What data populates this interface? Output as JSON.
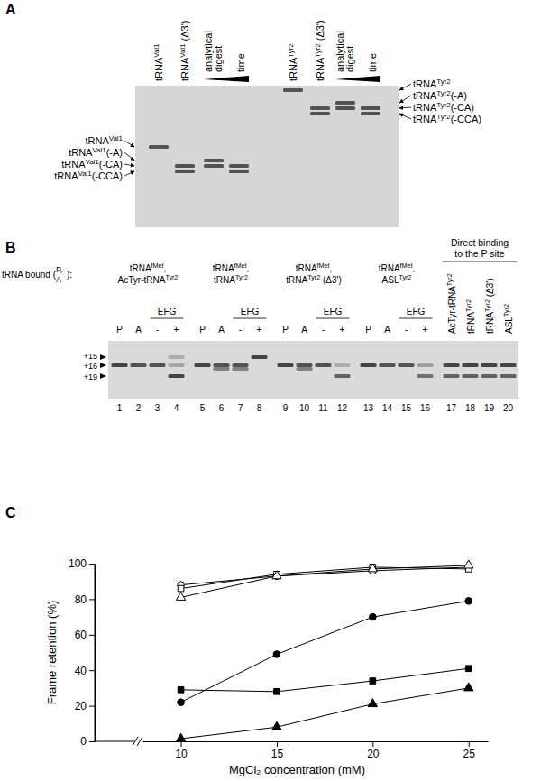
{
  "panel_a": {
    "label": "A",
    "lane_labels": [
      [
        {
          "text": "tRNA"
        },
        {
          "sup": "Val1"
        }
      ],
      [
        {
          "text": "tRNA"
        },
        {
          "sup": "Val1"
        },
        {
          "text": " (Δ3')"
        }
      ],
      [
        {
          "text": "tRNA"
        },
        {
          "sup": "Tyr2"
        }
      ],
      [
        {
          "text": "tRNA"
        },
        {
          "sup": "Tyr2"
        },
        {
          "text": " (Δ3')"
        }
      ]
    ],
    "digest_label": [
      "analytical",
      "digest"
    ],
    "time_label": "time",
    "left_markers": [
      [
        {
          "text": "tRNA"
        },
        {
          "sup": "Val1"
        }
      ],
      [
        {
          "text": "tRNA"
        },
        {
          "sup": "Val1"
        },
        {
          "text": "(-A)"
        }
      ],
      [
        {
          "text": "tRNA"
        },
        {
          "sup": "Val1"
        },
        {
          "text": "(-CA)"
        }
      ],
      [
        {
          "text": "tRNA"
        },
        {
          "sup": "Val1"
        },
        {
          "text": "(-CCA)"
        }
      ]
    ],
    "right_markers": [
      [
        {
          "text": "tRNA"
        },
        {
          "sup": "Tyr2"
        }
      ],
      [
        {
          "text": "tRNA"
        },
        {
          "sup": "Tyr2"
        },
        {
          "text": "(-A)"
        }
      ],
      [
        {
          "text": "tRNA"
        },
        {
          "sup": "Tyr2"
        },
        {
          "text": "(-CA)"
        }
      ],
      [
        {
          "text": "tRNA"
        },
        {
          "sup": "Tyr2"
        },
        {
          "text": "(-CCA)"
        }
      ]
    ]
  },
  "panel_b": {
    "label": "B",
    "row_title": {
      "prefix": "tRNA bound (",
      "upper": "P,",
      "lower": "A",
      "suffix": "):"
    },
    "groups": [
      [
        [
          {
            "text": "tRNA"
          },
          {
            "sup": "fMet"
          },
          {
            "text": ","
          }
        ],
        [
          {
            "text": "AcTyr-tRNA"
          },
          {
            "sup": "Tyr2"
          }
        ]
      ],
      [
        [
          {
            "text": "tRNA"
          },
          {
            "sup": "fMet"
          },
          {
            "text": ","
          }
        ],
        [
          {
            "text": "tRNA"
          },
          {
            "sup": "Tyr2"
          }
        ]
      ],
      [
        [
          {
            "text": "tRNA"
          },
          {
            "sup": "fMet"
          },
          {
            "text": ","
          }
        ],
        [
          {
            "text": "tRNA"
          },
          {
            "sup": "Tyr2"
          },
          {
            "text": " (Δ3')"
          }
        ]
      ],
      [
        [
          {
            "text": "tRNA"
          },
          {
            "sup": "fMet"
          },
          {
            "text": ","
          }
        ],
        [
          {
            "text": "ASL"
          },
          {
            "sup": "Tyr2"
          }
        ]
      ]
    ],
    "lane_labels": [
      "P",
      "A",
      "-",
      "+"
    ],
    "efg_label": "EFG",
    "direct_binding_title": [
      "Direct binding",
      "to the P site"
    ],
    "direct_binding_lanes": [
      [
        {
          "text": "AcTyr-tRNA"
        },
        {
          "sup": "Tyr2"
        }
      ],
      [
        {
          "text": "tRNA"
        },
        {
          "sup": "Tyr2"
        }
      ],
      [
        {
          "text": "tRNA"
        },
        {
          "sup": "Tyr2"
        },
        {
          "text": " (Δ3')"
        }
      ],
      [
        {
          "text": "ASL"
        },
        {
          "sup": "Tyr2"
        }
      ]
    ],
    "markers": [
      "+15",
      "+16",
      "+19"
    ],
    "lane_numbers": [
      1,
      2,
      3,
      4,
      5,
      6,
      7,
      8,
      9,
      10,
      11,
      12,
      13,
      14,
      15,
      16,
      17,
      18,
      19,
      20
    ]
  },
  "panel_c": {
    "label": "C"
  },
  "chart_data": {
    "type": "line",
    "x_label": "MgCl₂ concentration (mM)",
    "y_label": "Frame retention (%)",
    "x": [
      10,
      15,
      20,
      25
    ],
    "xlim": [
      8,
      26
    ],
    "xticks": [
      10,
      15,
      20,
      25
    ],
    "ylim": [
      0,
      100
    ],
    "yticks": [
      0,
      20,
      40,
      60,
      80,
      100
    ],
    "grid": false,
    "series": [
      {
        "color": "#000000",
        "marker": "open-circle",
        "values": [
          88,
          93,
          96,
          98
        ]
      },
      {
        "color": "#000000",
        "marker": "open-square",
        "values": [
          86,
          94,
          98,
          97
        ]
      },
      {
        "color": "#000000",
        "marker": "open-triangle",
        "values": [
          81,
          93,
          97,
          99
        ]
      },
      {
        "color": "#000000",
        "marker": "filled-circle",
        "values": [
          22,
          49,
          70,
          79
        ]
      },
      {
        "color": "#000000",
        "marker": "filled-square",
        "values": [
          29,
          28,
          34,
          41
        ]
      },
      {
        "color": "#000000",
        "marker": "filled-triangle",
        "values": [
          1.5,
          8,
          21,
          30
        ]
      }
    ]
  }
}
